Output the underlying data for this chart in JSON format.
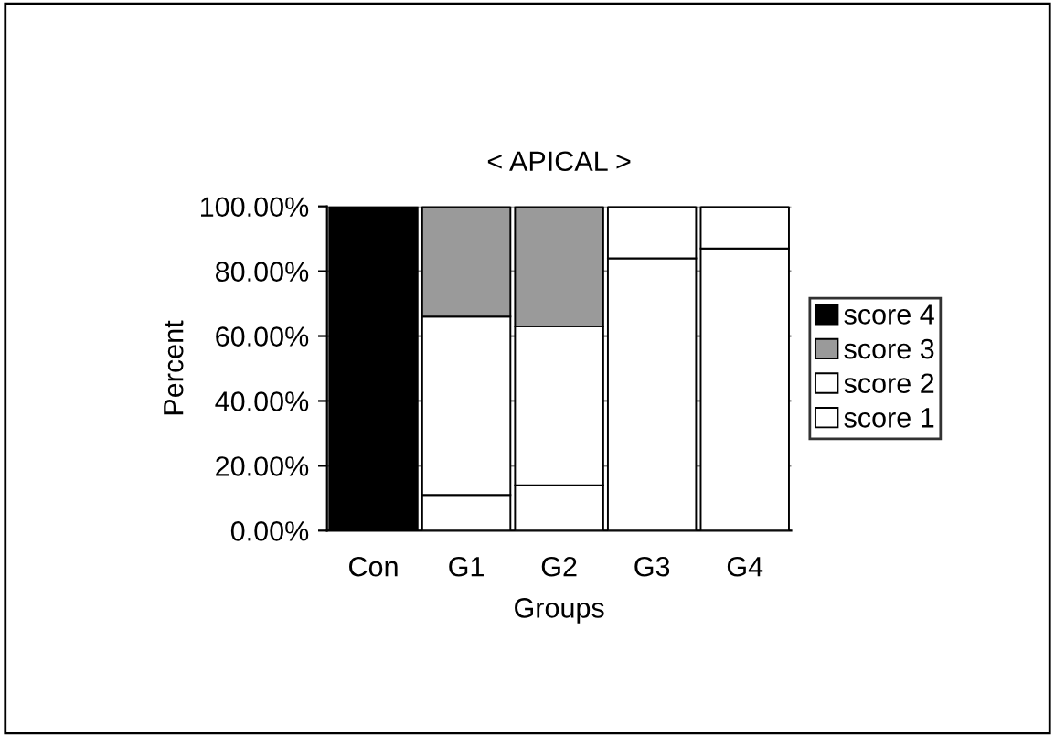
{
  "chart_data": {
    "type": "bar",
    "title": "< APICAL >",
    "xlabel": "Groups",
    "ylabel": "Percent",
    "categories": [
      "Con",
      "G1",
      "G2",
      "G3",
      "G4"
    ],
    "stacked": true,
    "series": [
      {
        "name": "score 1",
        "color": "#ffffff",
        "values": [
          0,
          11,
          14,
          84,
          87
        ]
      },
      {
        "name": "score 2",
        "color": "#ffffff",
        "values": [
          0,
          55,
          49,
          16,
          13
        ]
      },
      {
        "name": "score 3",
        "color": "#9a9a9a",
        "values": [
          0,
          34,
          37,
          0,
          0
        ]
      },
      {
        "name": "score 4",
        "color": "#000000",
        "values": [
          100,
          0,
          0,
          0,
          0
        ]
      }
    ],
    "ylim": [
      0,
      100
    ],
    "yticks": [
      {
        "value": 0,
        "label": "0.00%"
      },
      {
        "value": 20,
        "label": "20.00%"
      },
      {
        "value": 40,
        "label": "40.00%"
      },
      {
        "value": 60,
        "label": "60.00%"
      },
      {
        "value": 80,
        "label": "80.00%"
      },
      {
        "value": 100,
        "label": "100.00%"
      }
    ],
    "grid": "y",
    "legend": "right"
  }
}
